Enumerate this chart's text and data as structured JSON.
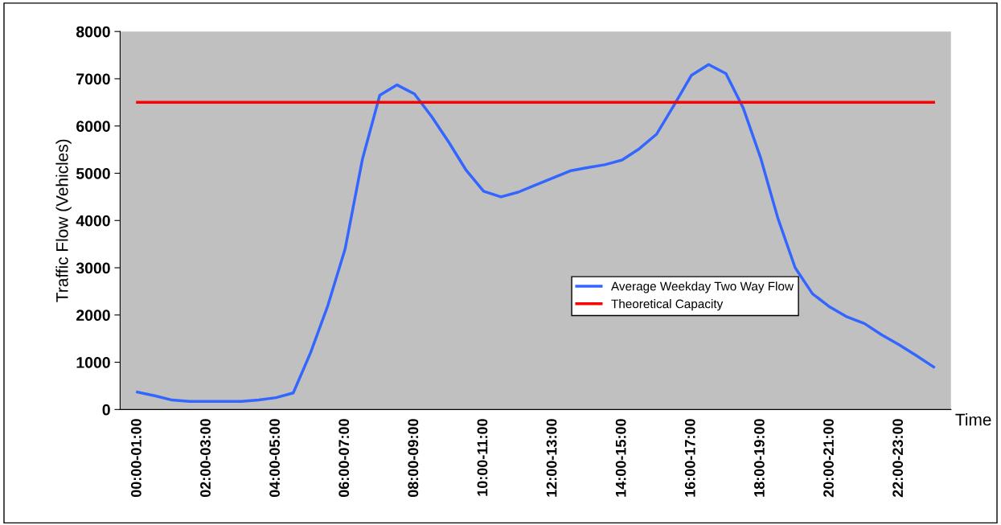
{
  "chart_data": {
    "type": "line",
    "xlabel": "Time",
    "ylabel": "Traffic Flow (Vehicles)",
    "categories": [
      "00:00-01:00",
      null,
      null,
      null,
      "02:00-03:00",
      null,
      null,
      null,
      "04:00-05:00",
      null,
      null,
      null,
      "06:00-07:00",
      null,
      null,
      null,
      "08:00-09:00",
      null,
      null,
      null,
      "10:00-11:00",
      null,
      null,
      null,
      "12:00-13:00",
      null,
      null,
      null,
      "14:00-15:00",
      null,
      null,
      null,
      "16:00-17:00",
      null,
      null,
      null,
      "18:00-19:00",
      null,
      null,
      null,
      "20:00-21:00",
      null,
      null,
      null,
      "22:00-23:00",
      null,
      null
    ],
    "ylim": [
      0,
      8000
    ],
    "yticks": [
      0,
      1000,
      2000,
      3000,
      4000,
      5000,
      6000,
      7000,
      8000
    ],
    "grid": false,
    "legend": "center",
    "marker": "none",
    "line_style": "solid",
    "series": [
      {
        "name": "Average Weekday Two Way Flow",
        "color": "#3366ff",
        "values": [
          370,
          290,
          200,
          170,
          170,
          170,
          170,
          200,
          250,
          350,
          1200,
          2200,
          3400,
          5300,
          6650,
          6870,
          6680,
          6200,
          5650,
          5060,
          4620,
          4500,
          4600,
          4750,
          4900,
          5050,
          5120,
          5180,
          5280,
          5520,
          5830,
          6440,
          7070,
          7300,
          7110,
          6380,
          5330,
          4050,
          3000,
          2450,
          2170,
          1960,
          1820,
          1580,
          1370,
          1140,
          900
        ]
      },
      {
        "name": "Theoretical Capacity",
        "color": "#ff0000",
        "values": [
          6500,
          6500,
          6500,
          6500,
          6500,
          6500,
          6500,
          6500,
          6500,
          6500,
          6500,
          6500,
          6500,
          6500,
          6500,
          6500,
          6500,
          6500,
          6500,
          6500,
          6500,
          6500,
          6500,
          6500,
          6500,
          6500,
          6500,
          6500,
          6500,
          6500,
          6500,
          6500,
          6500,
          6500,
          6500,
          6500,
          6500,
          6500,
          6500,
          6500,
          6500,
          6500,
          6500,
          6500,
          6500,
          6500,
          6500
        ]
      }
    ]
  }
}
